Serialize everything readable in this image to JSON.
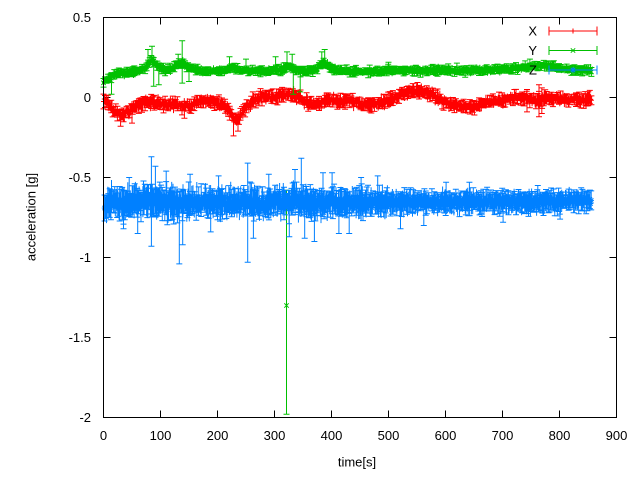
{
  "chart_data": {
    "type": "scatter",
    "subtype": "errorbars",
    "title": "",
    "xlabel": "time[s]",
    "ylabel": "acceleration [g]",
    "xlim": [
      0,
      900
    ],
    "ylim": [
      -2,
      0.5
    ],
    "grid": false,
    "background": "#ffffff",
    "axis_color": "#000000",
    "xticks": [
      {
        "v": 0,
        "label": "0"
      },
      {
        "v": 100,
        "label": "100"
      },
      {
        "v": 200,
        "label": "200"
      },
      {
        "v": 300,
        "label": "300"
      },
      {
        "v": 400,
        "label": "400"
      },
      {
        "v": 500,
        "label": "500"
      },
      {
        "v": 600,
        "label": "600"
      },
      {
        "v": 700,
        "label": "700"
      },
      {
        "v": 800,
        "label": "800"
      },
      {
        "v": 900,
        "label": "900"
      }
    ],
    "yticks": [
      {
        "v": 0.5,
        "label": "0.5"
      },
      {
        "v": 0,
        "label": "0"
      },
      {
        "v": -0.5,
        "label": "-0.5"
      },
      {
        "v": -1,
        "label": "-1"
      },
      {
        "v": -1.5,
        "label": "-1.5"
      },
      {
        "v": -2,
        "label": "-2"
      }
    ],
    "legend": {
      "position": "top-right",
      "entries": [
        "X",
        "Y",
        "Z"
      ]
    },
    "series": [
      {
        "name": "X",
        "color": "#ff0000",
        "marker": "plus",
        "style": "errorbars",
        "trange": [
          0,
          856
        ],
        "dt": 1.35,
        "baseline": [
          [
            0,
            -0.005
          ],
          [
            8,
            -0.03
          ],
          [
            18,
            -0.09
          ],
          [
            30,
            -0.105
          ],
          [
            45,
            -0.09
          ],
          [
            58,
            -0.055
          ],
          [
            70,
            -0.03
          ],
          [
            85,
            -0.025
          ],
          [
            100,
            -0.035
          ],
          [
            115,
            -0.045
          ],
          [
            128,
            -0.04
          ],
          [
            142,
            -0.055
          ],
          [
            155,
            -0.05
          ],
          [
            168,
            -0.025
          ],
          [
            180,
            -0.02
          ],
          [
            192,
            -0.03
          ],
          [
            205,
            -0.04
          ],
          [
            218,
            -0.07
          ],
          [
            228,
            -0.13
          ],
          [
            234,
            -0.15
          ],
          [
            242,
            -0.1
          ],
          [
            252,
            -0.05
          ],
          [
            262,
            -0.02
          ],
          [
            272,
            0
          ],
          [
            285,
            0.005
          ],
          [
            298,
            0
          ],
          [
            312,
            0.015
          ],
          [
            325,
            0.02
          ],
          [
            338,
            0.01
          ],
          [
            352,
            -0.02
          ],
          [
            365,
            -0.04
          ],
          [
            378,
            -0.035
          ],
          [
            392,
            -0.02
          ],
          [
            405,
            -0.02
          ],
          [
            418,
            -0.025
          ],
          [
            430,
            -0.02
          ],
          [
            442,
            -0.03
          ],
          [
            455,
            -0.05
          ],
          [
            468,
            -0.045
          ],
          [
            480,
            -0.04
          ],
          [
            492,
            -0.03
          ],
          [
            505,
            -0.015
          ],
          [
            518,
            0.01
          ],
          [
            530,
            0.035
          ],
          [
            545,
            0.04
          ],
          [
            558,
            0.035
          ],
          [
            570,
            0.03
          ],
          [
            582,
            0.01
          ],
          [
            595,
            -0.025
          ],
          [
            608,
            -0.04
          ],
          [
            622,
            -0.05
          ],
          [
            638,
            -0.065
          ],
          [
            652,
            -0.06
          ],
          [
            665,
            -0.04
          ],
          [
            678,
            -0.025
          ],
          [
            692,
            -0.02
          ],
          [
            705,
            -0.012
          ],
          [
            718,
            -0.005
          ],
          [
            730,
            0
          ],
          [
            742,
            -0.01
          ],
          [
            755,
            -0.015
          ],
          [
            765,
            -0.02
          ],
          [
            775,
            0
          ],
          [
            788,
            -0.005
          ],
          [
            800,
            -0.01
          ],
          [
            812,
            -0.015
          ],
          [
            825,
            -0.01
          ],
          [
            840,
            -0.012
          ],
          [
            856,
            -0.012
          ]
        ],
        "noise": [
          [
            0,
            0.02
          ],
          [
            856,
            0.02
          ]
        ],
        "err": [
          [
            0,
            0.032
          ],
          [
            856,
            0.032
          ]
        ],
        "spikes": [
          {
            "t": 30,
            "lo": -0.18
          },
          {
            "t": 50,
            "lo": -0.16
          },
          {
            "t": 142,
            "lo": -0.13
          },
          {
            "t": 228,
            "lo": -0.24
          },
          {
            "t": 236,
            "lo": -0.21
          },
          {
            "t": 538,
            "hi": 0.07
          },
          {
            "t": 743,
            "hi": 0.05,
            "lo": -0.09
          },
          {
            "t": 764,
            "hi": 0.08,
            "lo": -0.12
          },
          {
            "t": 769,
            "hi": 0.06,
            "lo": -0.1
          }
        ],
        "outliers": []
      },
      {
        "name": "Y",
        "color": "#00c000",
        "marker": "cross",
        "style": "errorbars",
        "trange": [
          0,
          856
        ],
        "dt": 1.35,
        "baseline": [
          [
            0,
            0.1
          ],
          [
            8,
            0.115
          ],
          [
            16,
            0.14
          ],
          [
            26,
            0.15
          ],
          [
            38,
            0.155
          ],
          [
            52,
            0.16
          ],
          [
            64,
            0.17
          ],
          [
            72,
            0.18
          ],
          [
            78,
            0.21
          ],
          [
            85,
            0.24
          ],
          [
            92,
            0.21
          ],
          [
            100,
            0.185
          ],
          [
            112,
            0.17
          ],
          [
            122,
            0.185
          ],
          [
            130,
            0.21
          ],
          [
            140,
            0.215
          ],
          [
            148,
            0.19
          ],
          [
            158,
            0.175
          ],
          [
            170,
            0.165
          ],
          [
            185,
            0.165
          ],
          [
            200,
            0.165
          ],
          [
            212,
            0.17
          ],
          [
            220,
            0.18
          ],
          [
            227,
            0.19
          ],
          [
            235,
            0.175
          ],
          [
            245,
            0.175
          ],
          [
            255,
            0.17
          ],
          [
            268,
            0.165
          ],
          [
            282,
            0.165
          ],
          [
            296,
            0.17
          ],
          [
            308,
            0.17
          ],
          [
            316,
            0.175
          ],
          [
            322,
            0.195
          ],
          [
            328,
            0.195
          ],
          [
            336,
            0.175
          ],
          [
            348,
            0.165
          ],
          [
            360,
            0.168
          ],
          [
            372,
            0.175
          ],
          [
            380,
            0.2
          ],
          [
            386,
            0.215
          ],
          [
            393,
            0.2
          ],
          [
            400,
            0.175
          ],
          [
            412,
            0.168
          ],
          [
            428,
            0.165
          ],
          [
            445,
            0.165
          ],
          [
            462,
            0.162
          ],
          [
            480,
            0.165
          ],
          [
            500,
            0.167
          ],
          [
            520,
            0.17
          ],
          [
            540,
            0.166
          ],
          [
            560,
            0.165
          ],
          [
            580,
            0.17
          ],
          [
            600,
            0.172
          ],
          [
            620,
            0.168
          ],
          [
            640,
            0.168
          ],
          [
            660,
            0.17
          ],
          [
            680,
            0.172
          ],
          [
            700,
            0.176
          ],
          [
            715,
            0.18
          ],
          [
            728,
            0.185
          ],
          [
            742,
            0.19
          ],
          [
            756,
            0.195
          ],
          [
            770,
            0.2
          ],
          [
            784,
            0.195
          ],
          [
            798,
            0.185
          ],
          [
            812,
            0.178
          ],
          [
            826,
            0.172
          ],
          [
            840,
            0.17
          ],
          [
            856,
            0.17
          ]
        ],
        "noise": [
          [
            0,
            0.012
          ],
          [
            856,
            0.012
          ]
        ],
        "err": [
          [
            0,
            0.022
          ],
          [
            856,
            0.022
          ]
        ],
        "spikes": [
          {
            "t": 14,
            "lo": 0.02
          },
          {
            "t": 78,
            "hi": 0.3
          },
          {
            "t": 85,
            "hi": 0.32
          },
          {
            "t": 88,
            "lo": 0.07
          },
          {
            "t": 97,
            "lo": 0.08
          },
          {
            "t": 131,
            "hi": 0.27
          },
          {
            "t": 138,
            "hi": 0.355,
            "lo": 0.09
          },
          {
            "t": 150,
            "lo": 0.1
          },
          {
            "t": 221,
            "hi": 0.255
          },
          {
            "t": 250,
            "hi": 0.24
          },
          {
            "t": 302,
            "hi": 0.255
          },
          {
            "t": 322,
            "hi": 0.285
          },
          {
            "t": 331,
            "hi": 0.27
          },
          {
            "t": 333,
            "lo": 0.02
          },
          {
            "t": 345,
            "lo": 0.035
          },
          {
            "t": 383,
            "hi": 0.285
          },
          {
            "t": 388,
            "hi": 0.3
          },
          {
            "t": 500,
            "hi": 0.22
          },
          {
            "t": 620,
            "hi": 0.215
          },
          {
            "t": 748,
            "hi": 0.24
          },
          {
            "t": 790,
            "hi": 0.23
          }
        ],
        "outliers": [
          {
            "t": 321,
            "y": -1.3,
            "bar": [
              -1.98,
              -0.58
            ]
          }
        ]
      },
      {
        "name": "Z",
        "color": "#0080ff",
        "marker": "star",
        "style": "errorbars",
        "trange": [
          2,
          856
        ],
        "dt": 1.1,
        "baseline": [
          [
            2,
            -0.67
          ],
          [
            15,
            -0.658
          ],
          [
            30,
            -0.66
          ],
          [
            50,
            -0.655
          ],
          [
            70,
            -0.65
          ],
          [
            85,
            -0.648
          ],
          [
            100,
            -0.655
          ],
          [
            115,
            -0.66
          ],
          [
            130,
            -0.658
          ],
          [
            145,
            -0.655
          ],
          [
            160,
            -0.652
          ],
          [
            180,
            -0.655
          ],
          [
            200,
            -0.66
          ],
          [
            220,
            -0.657
          ],
          [
            240,
            -0.652
          ],
          [
            260,
            -0.655
          ],
          [
            280,
            -0.66
          ],
          [
            300,
            -0.657
          ],
          [
            320,
            -0.652
          ],
          [
            340,
            -0.648
          ],
          [
            360,
            -0.655
          ],
          [
            380,
            -0.66
          ],
          [
            400,
            -0.657
          ],
          [
            420,
            -0.653
          ],
          [
            440,
            -0.656
          ],
          [
            460,
            -0.66
          ],
          [
            480,
            -0.656
          ],
          [
            500,
            -0.652
          ],
          [
            520,
            -0.655
          ],
          [
            540,
            -0.652
          ],
          [
            560,
            -0.655
          ],
          [
            580,
            -0.652
          ],
          [
            600,
            -0.651
          ],
          [
            620,
            -0.655
          ],
          [
            640,
            -0.652
          ],
          [
            660,
            -0.655
          ],
          [
            680,
            -0.652
          ],
          [
            700,
            -0.65
          ],
          [
            720,
            -0.652
          ],
          [
            740,
            -0.653
          ],
          [
            760,
            -0.651
          ],
          [
            780,
            -0.649
          ],
          [
            800,
            -0.65
          ],
          [
            820,
            -0.646
          ],
          [
            840,
            -0.645
          ],
          [
            856,
            -0.642
          ]
        ],
        "noise": [
          [
            0,
            0.048
          ],
          [
            350,
            0.045
          ],
          [
            500,
            0.034
          ],
          [
            856,
            0.028
          ]
        ],
        "err": [
          [
            0,
            0.075
          ],
          [
            400,
            0.07
          ],
          [
            520,
            0.055
          ],
          [
            856,
            0.05
          ]
        ],
        "spikes": [
          {
            "t": 35,
            "lo": -0.82
          },
          {
            "t": 45,
            "hi": -0.5
          },
          {
            "t": 60,
            "lo": -0.85
          },
          {
            "t": 84,
            "hi": -0.37,
            "lo": -0.93
          },
          {
            "t": 91,
            "hi": -0.43
          },
          {
            "t": 110,
            "hi": -0.46
          },
          {
            "t": 133,
            "lo": -1.04
          },
          {
            "t": 139,
            "lo": -0.92
          },
          {
            "t": 152,
            "hi": -0.48
          },
          {
            "t": 188,
            "lo": -0.84
          },
          {
            "t": 202,
            "hi": -0.49
          },
          {
            "t": 253,
            "hi": -0.41,
            "lo": -1.03
          },
          {
            "t": 263,
            "lo": -0.88
          },
          {
            "t": 290,
            "hi": -0.48
          },
          {
            "t": 326,
            "lo": -0.87
          },
          {
            "t": 336,
            "hi": -0.45
          },
          {
            "t": 347,
            "hi": -0.38
          },
          {
            "t": 353,
            "lo": -0.88
          },
          {
            "t": 370,
            "lo": -0.9
          },
          {
            "t": 385,
            "hi": -0.47
          },
          {
            "t": 401,
            "hi": -0.47
          },
          {
            "t": 413,
            "lo": -0.85
          },
          {
            "t": 431,
            "lo": -0.85
          },
          {
            "t": 452,
            "hi": -0.5
          },
          {
            "t": 481,
            "hi": -0.49
          },
          {
            "t": 521,
            "lo": -0.82
          },
          {
            "t": 562,
            "lo": -0.8
          },
          {
            "t": 601,
            "hi": -0.53
          },
          {
            "t": 642,
            "hi": -0.53
          },
          {
            "t": 701,
            "lo": -0.78
          },
          {
            "t": 762,
            "hi": -0.55
          },
          {
            "t": 801,
            "lo": -0.76
          }
        ],
        "outliers": []
      }
    ]
  }
}
